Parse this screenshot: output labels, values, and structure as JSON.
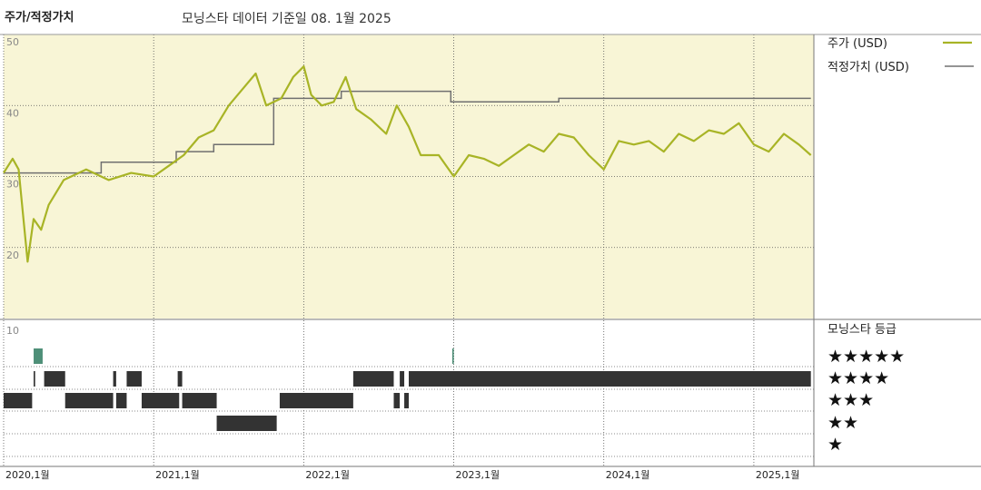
{
  "header": {
    "title": "주가/적정가치",
    "subtitle": "모닝스타 데이터 기준일 08. 1월 2025"
  },
  "colors": {
    "price": "#a8b426",
    "fair_value": "#707070",
    "panel_bg": "#f8f5d6",
    "rating_bar": "#333333",
    "rating_highlight": "#4e8f78"
  },
  "chart_data": [
    {
      "type": "line",
      "title": "주가/적정가치",
      "ylim": [
        10,
        50
      ],
      "yticks": [
        {
          "v": 50,
          "label": "50"
        },
        {
          "v": 40,
          "label": "40"
        },
        {
          "v": 30,
          "label": "30"
        },
        {
          "v": 20,
          "label": "20"
        }
      ],
      "grid": true,
      "legend": "top-right",
      "series": [
        {
          "name": "주가 (USD)",
          "points": [
            [
              2020.0,
              30.5
            ],
            [
              2020.06,
              32.5
            ],
            [
              2020.1,
              31.0
            ],
            [
              2020.16,
              18.0
            ],
            [
              2020.2,
              24.0
            ],
            [
              2020.25,
              22.5
            ],
            [
              2020.3,
              26.0
            ],
            [
              2020.4,
              29.5
            ],
            [
              2020.55,
              31.0
            ],
            [
              2020.7,
              29.5
            ],
            [
              2020.85,
              30.5
            ],
            [
              2021.0,
              30.0
            ],
            [
              2021.1,
              31.5
            ],
            [
              2021.2,
              33.0
            ],
            [
              2021.3,
              35.5
            ],
            [
              2021.4,
              36.5
            ],
            [
              2021.5,
              40.0
            ],
            [
              2021.6,
              42.5
            ],
            [
              2021.68,
              44.5
            ],
            [
              2021.75,
              40.0
            ],
            [
              2021.85,
              41.0
            ],
            [
              2021.93,
              44.0
            ],
            [
              2022.0,
              45.5
            ],
            [
              2022.05,
              41.5
            ],
            [
              2022.12,
              40.0
            ],
            [
              2022.2,
              40.5
            ],
            [
              2022.28,
              44.0
            ],
            [
              2022.35,
              39.5
            ],
            [
              2022.45,
              38.0
            ],
            [
              2022.55,
              36.0
            ],
            [
              2022.62,
              40.0
            ],
            [
              2022.7,
              37.0
            ],
            [
              2022.78,
              33.0
            ],
            [
              2022.9,
              33.0
            ],
            [
              2023.0,
              30.0
            ],
            [
              2023.1,
              33.0
            ],
            [
              2023.2,
              32.5
            ],
            [
              2023.3,
              31.5
            ],
            [
              2023.4,
              33.0
            ],
            [
              2023.5,
              34.5
            ],
            [
              2023.6,
              33.5
            ],
            [
              2023.7,
              36.0
            ],
            [
              2023.8,
              35.5
            ],
            [
              2023.9,
              33.0
            ],
            [
              2024.0,
              31.0
            ],
            [
              2024.1,
              35.0
            ],
            [
              2024.2,
              34.5
            ],
            [
              2024.3,
              35.0
            ],
            [
              2024.4,
              33.5
            ],
            [
              2024.5,
              36.0
            ],
            [
              2024.6,
              35.0
            ],
            [
              2024.7,
              36.5
            ],
            [
              2024.8,
              36.0
            ],
            [
              2024.9,
              37.5
            ],
            [
              2025.0,
              34.5
            ],
            [
              2025.1,
              33.5
            ],
            [
              2025.2,
              36.0
            ],
            [
              2025.3,
              34.5
            ],
            [
              2025.38,
              33.0
            ]
          ]
        },
        {
          "name": "적정가치 (USD)",
          "points": [
            [
              2020.0,
              30.5
            ],
            [
              2020.65,
              30.5
            ],
            [
              2020.65,
              32.0
            ],
            [
              2021.15,
              32.0
            ],
            [
              2021.15,
              33.5
            ],
            [
              2021.4,
              33.5
            ],
            [
              2021.4,
              34.5
            ],
            [
              2021.8,
              34.5
            ],
            [
              2021.8,
              41.0
            ],
            [
              2022.25,
              41.0
            ],
            [
              2022.25,
              42.0
            ],
            [
              2022.98,
              42.0
            ],
            [
              2022.98,
              40.5
            ],
            [
              2023.7,
              40.5
            ],
            [
              2023.7,
              41.0
            ],
            [
              2025.38,
              41.0
            ]
          ]
        }
      ]
    },
    {
      "type": "bar",
      "title": "모닝스타 등급",
      "ytick_label": "10",
      "rating_labels": [
        "★★★★★",
        "★★★★",
        "★★★",
        "★★",
        "★"
      ],
      "segments": [
        {
          "stars": 5,
          "start": 2020.2,
          "end": 2020.26
        },
        {
          "stars": 5,
          "start": 2022.99,
          "end": 2023.0
        },
        {
          "stars": 4,
          "start": 2020.2,
          "end": 2020.21
        },
        {
          "stars": 4,
          "start": 2020.27,
          "end": 2020.41
        },
        {
          "stars": 4,
          "start": 2020.73,
          "end": 2020.75
        },
        {
          "stars": 4,
          "start": 2020.82,
          "end": 2020.92
        },
        {
          "stars": 4,
          "start": 2021.16,
          "end": 2021.19
        },
        {
          "stars": 4,
          "start": 2022.33,
          "end": 2022.6
        },
        {
          "stars": 4,
          "start": 2022.64,
          "end": 2022.67
        },
        {
          "stars": 4,
          "start": 2022.7,
          "end": 2025.38
        },
        {
          "stars": 3,
          "start": 2020.0,
          "end": 2020.19
        },
        {
          "stars": 3,
          "start": 2020.41,
          "end": 2020.73
        },
        {
          "stars": 3,
          "start": 2020.75,
          "end": 2020.82
        },
        {
          "stars": 3,
          "start": 2020.92,
          "end": 2021.17
        },
        {
          "stars": 3,
          "start": 2021.19,
          "end": 2021.42
        },
        {
          "stars": 3,
          "start": 2021.84,
          "end": 2022.33
        },
        {
          "stars": 3,
          "start": 2022.6,
          "end": 2022.64
        },
        {
          "stars": 3,
          "start": 2022.67,
          "end": 2022.7
        },
        {
          "stars": 2,
          "start": 2021.42,
          "end": 2021.82
        }
      ]
    }
  ],
  "x_axis": {
    "range": [
      2020.0,
      2025.4
    ],
    "ticks": [
      {
        "v": 2020.0,
        "label": "2020,1월"
      },
      {
        "v": 2021.0,
        "label": "2021,1월"
      },
      {
        "v": 2022.0,
        "label": "2022,1월"
      },
      {
        "v": 2023.0,
        "label": "2023,1월"
      },
      {
        "v": 2024.0,
        "label": "2024,1월"
      },
      {
        "v": 2025.0,
        "label": "2025,1월"
      }
    ]
  }
}
